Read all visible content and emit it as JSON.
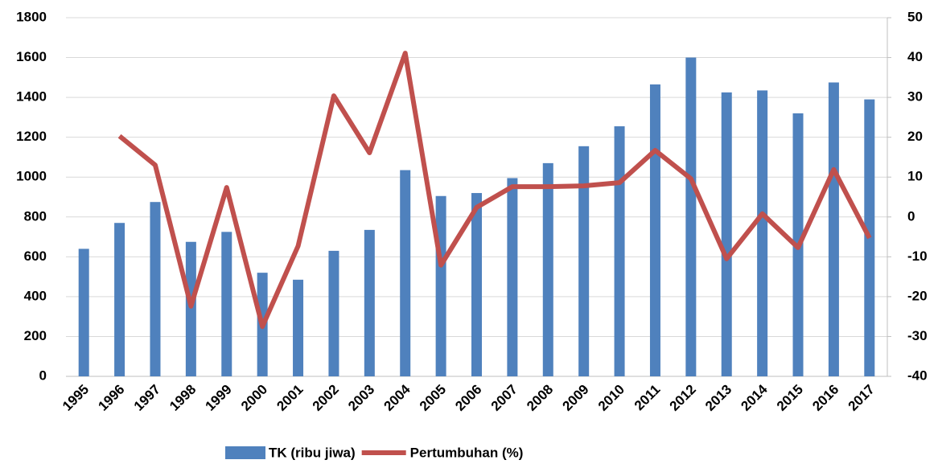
{
  "chart_data": {
    "type": "bar-line",
    "categories": [
      "1995",
      "1996",
      "1997",
      "1998",
      "1999",
      "2000",
      "2001",
      "2002",
      "2003",
      "2004",
      "2005",
      "2006",
      "2007",
      "2008",
      "2009",
      "2010",
      "2011",
      "2012",
      "2013",
      "2014",
      "2015",
      "2016",
      "2017"
    ],
    "series": [
      {
        "name": "TK (ribu jiwa)",
        "type": "bar",
        "color": "#4f81bd",
        "values": [
          640,
          770,
          875,
          675,
          725,
          520,
          485,
          630,
          735,
          1035,
          905,
          920,
          995,
          1070,
          1155,
          1255,
          1465,
          1600,
          1425,
          1435,
          1320,
          1475,
          1390
        ]
      },
      {
        "name": "Pertumbuhan (%)",
        "type": "line",
        "axis": "y2",
        "color": "#c0504d",
        "values": [
          null,
          20.3,
          13,
          -22.4,
          7.4,
          -27.5,
          -7.3,
          30.4,
          16.1,
          41.1,
          -12.1,
          2.4,
          7.6,
          7.6,
          7.8,
          8.6,
          16.7,
          9.6,
          -10.5,
          0.8,
          -7.7,
          11.9,
          -5.3
        ]
      }
    ],
    "ylim": [
      0,
      1800
    ],
    "yticks": [
      0,
      200,
      400,
      600,
      800,
      1000,
      1200,
      1400,
      1600,
      1800
    ],
    "y2lim": [
      -40,
      50
    ],
    "y2ticks": [
      -40,
      -30,
      -20,
      -10,
      0,
      10,
      20,
      30,
      40,
      50
    ],
    "grid": true
  }
}
